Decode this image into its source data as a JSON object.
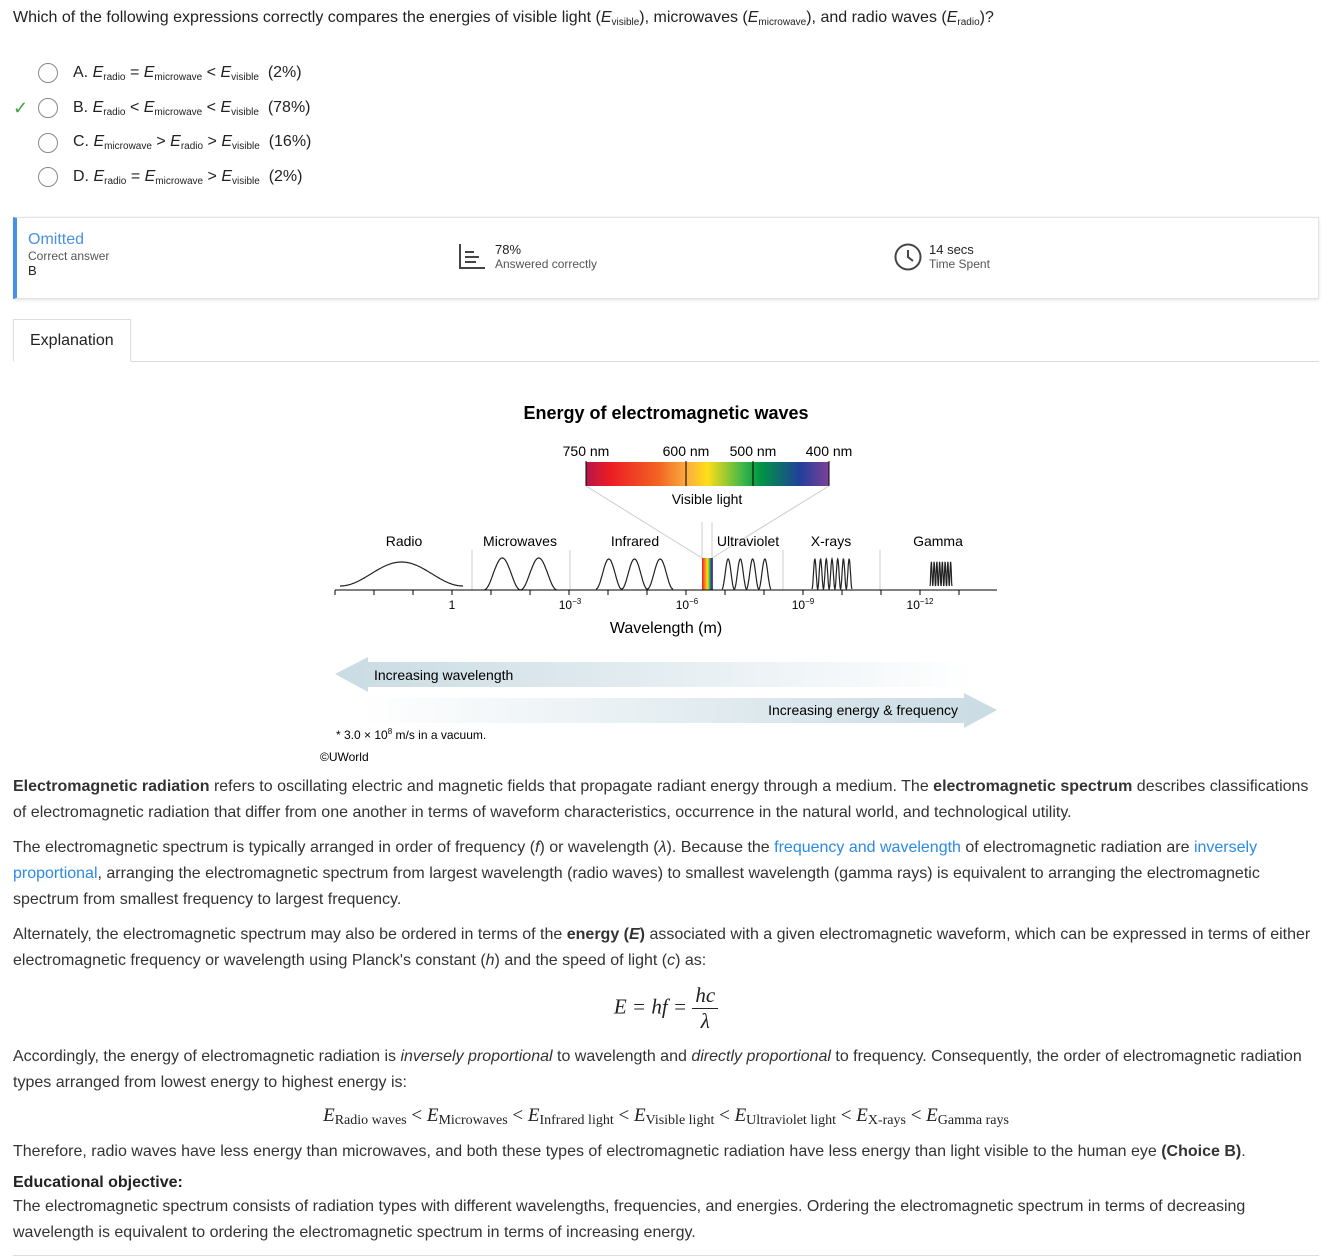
{
  "question": {
    "prefix": "Which of the following expressions correctly compares the energies of visible light (",
    "s1": "visible",
    "m1": "), microwaves (",
    "s2": "microwave",
    "m2": "), and radio waves (",
    "s3": "radio",
    "end": ")?"
  },
  "options": [
    {
      "letter": "A.",
      "a": "radio",
      "op1": "=",
      "b": "microwave",
      "op2": "<",
      "c": "visible",
      "pct": "(2%)",
      "correct": false
    },
    {
      "letter": "B.",
      "a": "radio",
      "op1": "<",
      "b": "microwave",
      "op2": "<",
      "c": "visible",
      "pct": "(78%)",
      "correct": true
    },
    {
      "letter": "C.",
      "a": "microwave",
      "op1": ">",
      "b": "radio",
      "op2": ">",
      "c": "visible",
      "pct": "(16%)",
      "correct": false
    },
    {
      "letter": "D.",
      "a": "radio",
      "op1": "=",
      "b": "microwave",
      "op2": ">",
      "c": "visible",
      "pct": "(2%)",
      "correct": false
    }
  ],
  "stats": {
    "status": "Omitted",
    "correct_label": "Correct answer",
    "correct_value": "B",
    "pct": "78%",
    "pct_label": "Answered correctly",
    "time": "14 secs",
    "time_label": "Time Spent"
  },
  "tabs": [
    {
      "label": "Explanation",
      "active": true
    }
  ],
  "figure": {
    "title": "Energy of electromagnetic waves",
    "nm_labels": [
      "750 nm",
      "600 nm",
      "500 nm",
      "400 nm"
    ],
    "visible_label": "Visible light",
    "regions": [
      "Radio",
      "Microwaves",
      "Infrared",
      "Ultraviolet",
      "X-rays",
      "Gamma"
    ],
    "ticks": [
      "1",
      "10",
      "10",
      "10",
      "10"
    ],
    "tick_exp": [
      "",
      "−3",
      "−6",
      "−9",
      "−12"
    ],
    "axis_label": "Wavelength (m)",
    "arrow_left": "Increasing wavelength",
    "arrow_right": "Increasing energy & frequency",
    "footnote": "* 3.0 × 10",
    "footnote_exp": "8",
    "footnote_end": " m/s in a vacuum.",
    "copyright": "©UWorld"
  },
  "text": {
    "p1a": "Electromagnetic radiation",
    "p1b": " refers to oscillating electric and magnetic fields that propagate radiant energy through a medium.  The ",
    "p1c": "electromagnetic spectrum",
    "p1d": " describes classifications of electromagnetic radiation that differ from one another in terms of waveform characteristics, occurrence in the natural world, and technological utility.",
    "p2a": "The electromagnetic spectrum is typically arranged in order of frequency (",
    "p2f": "f",
    "p2b": ") or wavelength (",
    "p2l": "λ",
    "p2c": ").  Because the ",
    "p2link1": "frequency and wavelength",
    "p2d": " of electromagnetic radiation are ",
    "p2link2": "inversely proportional",
    "p2e": ", arranging the electromagnetic spectrum from largest wavelength (radio waves) to smallest wavelength (gamma rays) is equivalent to arranging the electromagnetic spectrum from smallest frequency to largest frequency.",
    "p3a": "Alternately, the electromagnetic spectrum may also be ordered in terms of the ",
    "p3b": "energy (",
    "p3E": "E",
    "p3c": ")",
    "p3d": " associated with a given electromagnetic waveform, which can be expressed in terms of either electromagnetic frequency or wavelength using Planck's constant (",
    "p3h": "h",
    "p3e": ") and the speed of light (",
    "p3cc": "c",
    "p3f": ") as:",
    "eq1_lhs": "E = hf = ",
    "eq1_num": "hc",
    "eq1_den": "λ",
    "p4a": "Accordingly, the energy of electromagnetic radiation is ",
    "p4b": "inversely proportional",
    "p4c": " to wavelength and ",
    "p4d": "directly proportional",
    "p4e": " to frequency.  Consequently, the order of electromagnetic radiation types arranged from lowest energy to highest energy is:",
    "eq2": [
      "Radio waves",
      "Microwaves",
      "Infrared light",
      "Visible light",
      "Ultraviolet light",
      "X-rays",
      "Gamma rays"
    ],
    "p5a": "Therefore, radio waves have less energy than microwaves, and both these types of electromagnetic radiation have less energy than light visible to the human eye ",
    "p5b": "(Choice B)",
    "p5c": ".",
    "obj_title": "Educational objective:",
    "obj": "The electromagnetic spectrum consists of radiation types with different wavelengths, frequencies, and energies.  Ordering the electromagnetic spectrum in terms of decreasing wavelength is equivalent to ordering the electromagnetic spectrum in terms of increasing energy."
  },
  "colors": {
    "accent": "#4a90e2",
    "correct": "#3aa53a",
    "link": "#2a8ae6"
  }
}
